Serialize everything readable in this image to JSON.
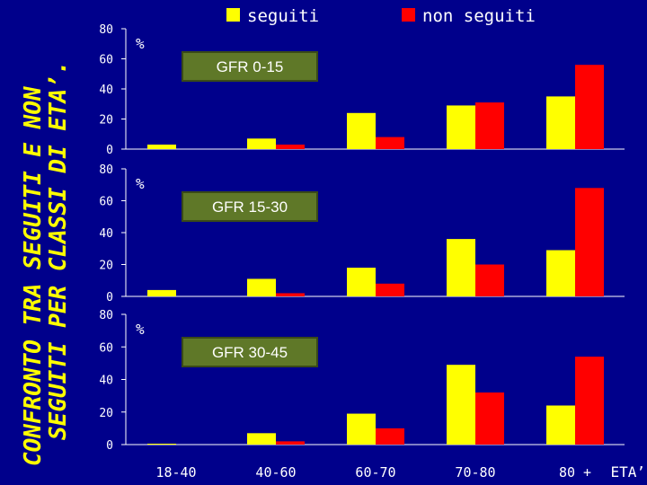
{
  "page": {
    "title_line1": "CONFRONTO TRA SEGUITI E NON",
    "title_line2": "SEGUITI PER CLASSI DI ETA’."
  },
  "colors": {
    "background": "#00008b",
    "axis": "#ffffff",
    "seguiti": "#ffff00",
    "non_seguiti": "#ff0000",
    "title": "#ffff00",
    "label_box": "#5f7828",
    "label_box_border": "#3a4a18"
  },
  "chart_data": [
    {
      "type": "bar",
      "panel_label": "GFR 0-15",
      "unit_label": "%",
      "categories": [
        "18-40",
        "40-60",
        "60-70",
        "70-80",
        "80 +"
      ],
      "series": [
        {
          "name": "seguiti",
          "values": [
            3,
            7,
            24,
            29,
            35
          ]
        },
        {
          "name": "non seguiti",
          "values": [
            0,
            3,
            8,
            31,
            56
          ]
        }
      ],
      "yticks": [
        0,
        20,
        40,
        60,
        80
      ],
      "ylim": [
        0,
        80
      ],
      "legend": "top",
      "grid": false
    },
    {
      "type": "bar",
      "panel_label": "GFR 15-30",
      "unit_label": "%",
      "categories": [
        "18-40",
        "40-60",
        "60-70",
        "70-80",
        "80 +"
      ],
      "series": [
        {
          "name": "seguiti",
          "values": [
            4,
            11,
            18,
            36,
            29
          ]
        },
        {
          "name": "non seguiti",
          "values": [
            0,
            2,
            8,
            20,
            68
          ]
        }
      ],
      "yticks": [
        0,
        20,
        40,
        60,
        80
      ],
      "ylim": [
        0,
        80
      ],
      "grid": false
    },
    {
      "type": "bar",
      "panel_label": "GFR 30-45",
      "unit_label": "%",
      "categories": [
        "18-40",
        "40-60",
        "60-70",
        "70-80",
        "80 +"
      ],
      "series": [
        {
          "name": "seguiti",
          "values": [
            0.3,
            7,
            19,
            49,
            24
          ]
        },
        {
          "name": "non seguiti",
          "values": [
            0,
            2,
            10,
            32,
            54
          ]
        }
      ],
      "yticks": [
        0,
        20,
        40,
        60,
        80
      ],
      "ylim": [
        0,
        80
      ],
      "xlabel": "ETA’",
      "grid": false
    }
  ]
}
